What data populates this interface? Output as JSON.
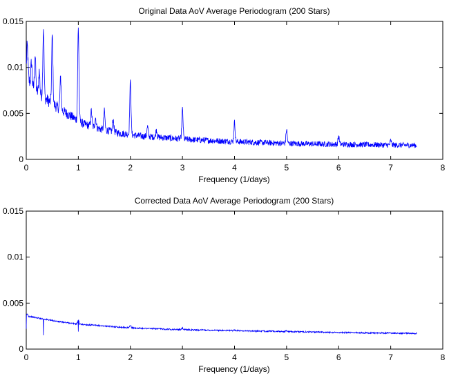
{
  "chart_data": [
    {
      "type": "line",
      "title": "Original Data AoV Average Periodogram (200 Stars)",
      "xlabel": "Frequency (1/days)",
      "ylabel": "",
      "xlim": [
        0,
        8
      ],
      "ylim": [
        0,
        0.015
      ],
      "xticks": [
        "0",
        "1",
        "2",
        "3",
        "4",
        "5",
        "6",
        "7",
        "8"
      ],
      "yticks": [
        "0",
        "0.005",
        "0.01",
        "0.015"
      ],
      "color": "#0000ff",
      "x_range": [
        0,
        7.5
      ],
      "baseline": [
        [
          0,
          0.0095
        ],
        [
          0.05,
          0.0085
        ],
        [
          0.15,
          0.0075
        ],
        [
          0.3,
          0.0068
        ],
        [
          0.5,
          0.006
        ],
        [
          0.7,
          0.0052
        ],
        [
          0.9,
          0.0045
        ],
        [
          1.1,
          0.0038
        ],
        [
          1.4,
          0.0033
        ],
        [
          1.8,
          0.0028
        ],
        [
          2.2,
          0.0025
        ],
        [
          2.7,
          0.0023
        ],
        [
          3.2,
          0.0021
        ],
        [
          4,
          0.0019
        ],
        [
          5,
          0.0017
        ],
        [
          6,
          0.0016
        ],
        [
          7.5,
          0.0015
        ]
      ],
      "peaks": [
        [
          0.02,
          0.0122
        ],
        [
          0.1,
          0.0105
        ],
        [
          0.17,
          0.0113
        ],
        [
          0.25,
          0.0095
        ],
        [
          0.33,
          0.0142
        ],
        [
          0.5,
          0.0134
        ],
        [
          0.66,
          0.0088
        ],
        [
          1.0,
          0.0142
        ],
        [
          1.25,
          0.0052
        ],
        [
          1.33,
          0.0045
        ],
        [
          1.5,
          0.0052
        ],
        [
          1.67,
          0.0043
        ],
        [
          2.0,
          0.0084
        ],
        [
          2.33,
          0.0035
        ],
        [
          2.5,
          0.0032
        ],
        [
          3.0,
          0.0054
        ],
        [
          4.0,
          0.004
        ],
        [
          5.0,
          0.0032
        ],
        [
          6.0,
          0.0025
        ],
        [
          7.0,
          0.002
        ]
      ],
      "noise": 0.0009
    },
    {
      "type": "line",
      "title": "Corrected Data AoV Average Periodogram (200 Stars)",
      "xlabel": "Frequency (1/days)",
      "ylabel": "",
      "xlim": [
        0,
        8
      ],
      "ylim": [
        0,
        0.015
      ],
      "xticks": [
        "0",
        "1",
        "2",
        "3",
        "4",
        "5",
        "6",
        "7",
        "8"
      ],
      "yticks": [
        "0",
        "0.005",
        "0.01",
        "0.015"
      ],
      "color": "#0000ff",
      "x_range": [
        0,
        7.5
      ],
      "baseline": [
        [
          0,
          0.0036
        ],
        [
          0.3,
          0.0033
        ],
        [
          0.6,
          0.003
        ],
        [
          1,
          0.0027
        ],
        [
          1.5,
          0.0025
        ],
        [
          2,
          0.0023
        ],
        [
          3,
          0.0021
        ],
        [
          4,
          0.002
        ],
        [
          5,
          0.0019
        ],
        [
          6,
          0.0018
        ],
        [
          7.5,
          0.0017
        ]
      ],
      "peaks": [
        [
          0.02,
          0.0038
        ],
        [
          1.0,
          0.0032
        ],
        [
          2.0,
          0.0026
        ],
        [
          3.0,
          0.0023
        ],
        [
          4.0,
          0.0021
        ],
        [
          5.0,
          0.002
        ]
      ],
      "dips": [
        [
          0.0,
          0.0022
        ],
        [
          0.33,
          0.0015
        ],
        [
          1.0,
          0.0019
        ]
      ],
      "noise": 0.00015
    }
  ]
}
